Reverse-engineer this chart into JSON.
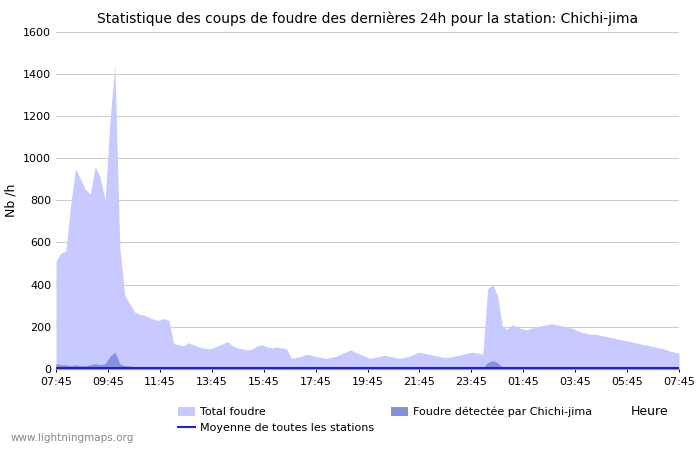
{
  "title": "Statistique des coups de foudre des dernières 24h pour la station: Chichi-jima",
  "xlabel": "Heure",
  "ylabel": "Nb /h",
  "xlim_labels": [
    "07:45",
    "09:45",
    "11:45",
    "13:45",
    "15:45",
    "17:45",
    "19:45",
    "21:45",
    "23:45",
    "01:45",
    "03:45",
    "05:45",
    "07:45"
  ],
  "ylim": [
    0,
    1600
  ],
  "yticks": [
    0,
    200,
    400,
    600,
    800,
    1000,
    1200,
    1400,
    1600
  ],
  "color_total": "#c8caff",
  "color_detected": "#8890dd",
  "color_moyenne": "#2222cc",
  "watermark": "www.lightningmaps.org",
  "total_foudre": [
    510,
    550,
    560,
    780,
    950,
    900,
    850,
    830,
    960,
    910,
    800,
    1180,
    1440,
    580,
    350,
    310,
    270,
    260,
    255,
    245,
    235,
    230,
    240,
    230,
    120,
    115,
    110,
    125,
    115,
    105,
    100,
    95,
    100,
    110,
    120,
    130,
    110,
    100,
    95,
    90,
    95,
    110,
    115,
    105,
    100,
    105,
    100,
    95,
    50,
    55,
    60,
    70,
    65,
    60,
    55,
    50,
    55,
    60,
    70,
    80,
    90,
    80,
    70,
    60,
    50,
    55,
    60,
    65,
    60,
    55,
    50,
    55,
    60,
    70,
    80,
    75,
    70,
    65,
    60,
    55,
    55,
    60,
    65,
    70,
    75,
    80,
    75,
    70,
    380,
    400,
    350,
    200,
    190,
    210,
    200,
    190,
    185,
    195,
    200,
    205,
    210,
    215,
    210,
    205,
    200,
    195,
    185,
    175,
    170,
    165,
    165,
    160,
    155,
    150,
    145,
    140,
    135,
    130,
    125,
    120,
    115,
    110,
    105,
    100,
    95,
    85,
    80,
    75
  ],
  "detected_chichi": [
    25,
    20,
    20,
    15,
    20,
    15,
    15,
    20,
    25,
    20,
    25,
    60,
    80,
    25,
    15,
    15,
    10,
    10,
    10,
    10,
    10,
    10,
    10,
    10,
    5,
    5,
    5,
    5,
    5,
    5,
    5,
    5,
    5,
    5,
    5,
    5,
    5,
    5,
    5,
    5,
    5,
    5,
    5,
    5,
    5,
    5,
    5,
    5,
    2,
    2,
    2,
    2,
    2,
    2,
    2,
    2,
    2,
    2,
    2,
    2,
    2,
    2,
    2,
    2,
    2,
    2,
    2,
    2,
    2,
    2,
    2,
    2,
    2,
    2,
    2,
    2,
    2,
    2,
    2,
    2,
    2,
    2,
    2,
    2,
    2,
    2,
    2,
    2,
    30,
    40,
    30,
    8,
    8,
    8,
    8,
    8,
    8,
    8,
    8,
    8,
    8,
    8,
    8,
    8,
    8,
    8,
    8,
    8,
    8,
    8,
    8,
    8,
    8,
    8,
    8,
    8,
    8,
    8,
    8,
    8,
    8,
    8,
    8,
    8,
    8,
    8,
    8,
    8
  ],
  "moyenne": [
    3,
    3,
    3,
    3,
    3,
    3,
    3,
    3,
    3,
    3,
    3,
    3,
    3,
    3,
    3,
    3,
    3,
    3,
    3,
    3,
    3,
    3,
    3,
    3,
    3,
    3,
    3,
    3,
    3,
    3,
    3,
    3,
    3,
    3,
    3,
    3,
    3,
    3,
    3,
    3,
    3,
    3,
    3,
    3,
    3,
    3,
    3,
    3,
    3,
    3,
    3,
    3,
    3,
    3,
    3,
    3,
    3,
    3,
    3,
    3,
    3,
    3,
    3,
    3,
    3,
    3,
    3,
    3,
    3,
    3,
    3,
    3,
    3,
    3,
    3,
    3,
    3,
    3,
    3,
    3,
    3,
    3,
    3,
    3,
    3,
    3,
    3,
    3,
    3,
    3,
    3,
    3,
    3,
    3,
    3,
    3,
    3,
    3,
    3,
    3,
    3,
    3,
    3,
    3,
    3,
    3,
    3,
    3,
    3,
    3,
    3,
    3,
    3,
    3,
    3,
    3,
    3,
    3,
    3,
    3,
    3,
    3,
    3,
    3,
    3,
    3,
    3,
    3
  ]
}
